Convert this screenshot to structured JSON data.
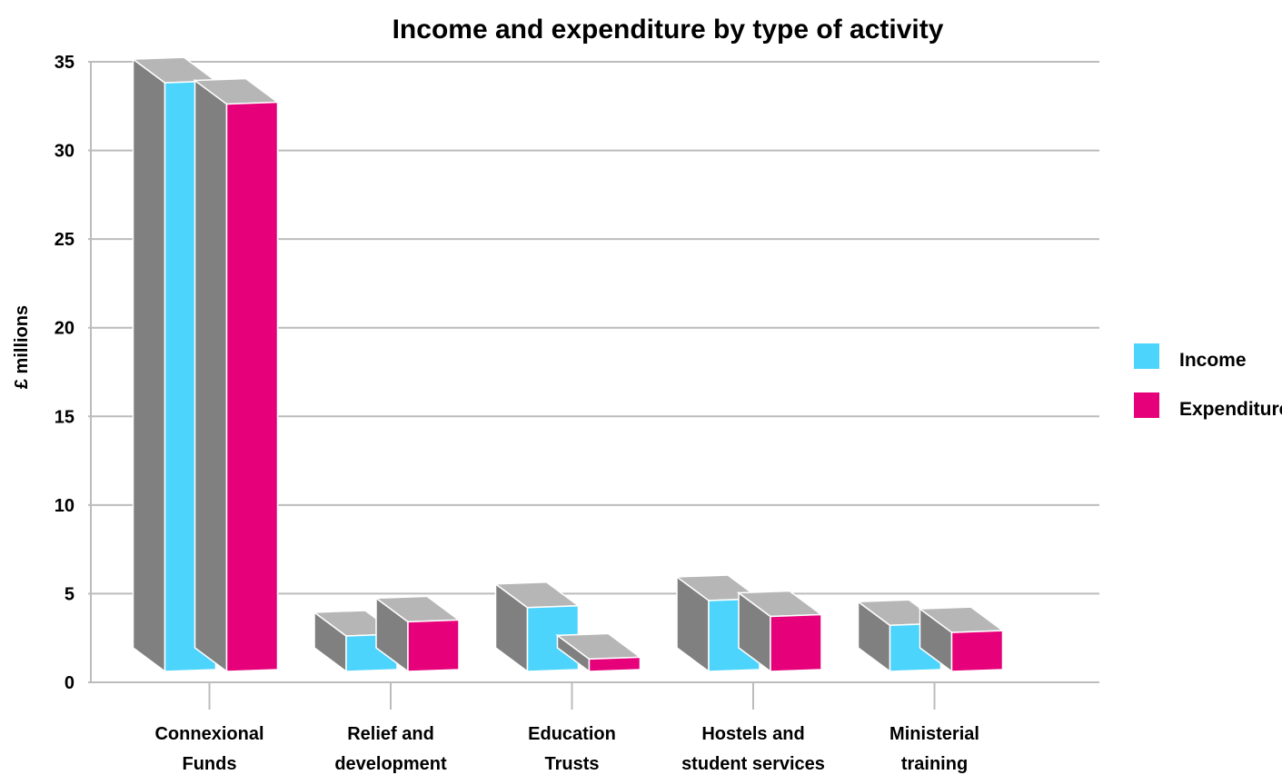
{
  "chart_data": {
    "type": "bar",
    "title": "Income and expenditure by type of activity",
    "ylabel": "£ millions",
    "xlabel": "",
    "ylim": [
      0,
      35
    ],
    "yticks": [
      "0",
      "5",
      "10",
      "15",
      "20",
      "25",
      "30",
      "35"
    ],
    "grid": true,
    "legend_position": "right",
    "style": "3d",
    "categories": [
      [
        "Connexional",
        "Funds"
      ],
      [
        "Relief and",
        "development"
      ],
      [
        "Education",
        "Trusts"
      ],
      [
        "Hostels and",
        "student services"
      ],
      [
        "Ministerial",
        "training"
      ]
    ],
    "series": [
      {
        "name": "Income",
        "color": "#4dd4fc",
        "values": [
          33.2,
          2.0,
          3.6,
          4.0,
          2.6
        ]
      },
      {
        "name": "Expenditure",
        "color": "#e6007a",
        "values": [
          32.0,
          2.8,
          0.7,
          3.1,
          2.2
        ]
      }
    ],
    "colors": {
      "grid": "#bcbcbc",
      "top_face": "#b6b6b6",
      "side_face": "#808080"
    }
  }
}
